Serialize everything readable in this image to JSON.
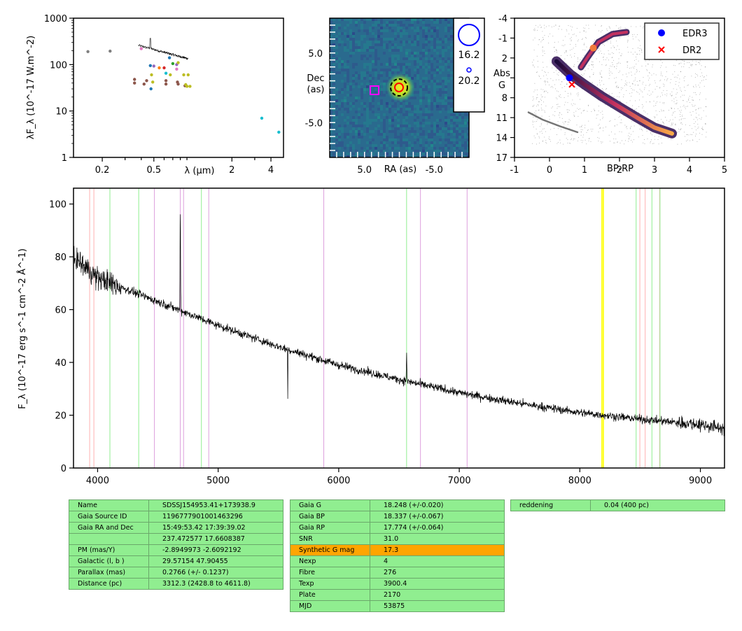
{
  "chart_data": [
    {
      "type": "scatter",
      "xlabel": "λ (μm)",
      "ylabel": "λF_λ (10^-17 W.m^-2)",
      "xscale": "log",
      "yscale": "log",
      "xlim": [
        0.12,
        5
      ],
      "ylim": [
        1,
        1000
      ],
      "xticks": [
        "0.2",
        "0.5",
        "2",
        "4"
      ],
      "yticks": [
        "1",
        "10",
        "100",
        "1000"
      ],
      "points": [
        {
          "x": 0.155,
          "y": 190,
          "color": "#7f7f7f"
        },
        {
          "x": 0.23,
          "y": 195,
          "color": "#7f7f7f"
        },
        {
          "x": 0.355,
          "y": 48,
          "color": "#8c564b"
        },
        {
          "x": 0.355,
          "y": 40,
          "color": "#8c564b"
        },
        {
          "x": 0.4,
          "y": 220,
          "color": "#e377c2"
        },
        {
          "x": 0.42,
          "y": 38,
          "color": "#8c564b"
        },
        {
          "x": 0.44,
          "y": 45,
          "color": "#8c564b"
        },
        {
          "x": 0.47,
          "y": 95,
          "color": "#1f77b4"
        },
        {
          "x": 0.475,
          "y": 30,
          "color": "#1f77b4"
        },
        {
          "x": 0.48,
          "y": 60,
          "color": "#bcbd22"
        },
        {
          "x": 0.49,
          "y": 42,
          "color": "#bcbd22"
        },
        {
          "x": 0.5,
          "y": 93,
          "color": "#9467bd"
        },
        {
          "x": 0.55,
          "y": 85,
          "color": "#ff7f0e"
        },
        {
          "x": 0.6,
          "y": 85,
          "color": "#d62728"
        },
        {
          "x": 0.62,
          "y": 65,
          "color": "#17becf"
        },
        {
          "x": 0.62,
          "y": 45,
          "color": "#8c564b"
        },
        {
          "x": 0.62,
          "y": 38,
          "color": "#8c564b"
        },
        {
          "x": 0.66,
          "y": 140,
          "color": "#1f77b4"
        },
        {
          "x": 0.67,
          "y": 60,
          "color": "#bcbd22"
        },
        {
          "x": 0.7,
          "y": 105,
          "color": "#2ca02c"
        },
        {
          "x": 0.75,
          "y": 100,
          "color": "#9467bd"
        },
        {
          "x": 0.75,
          "y": 80,
          "color": "#e377c2"
        },
        {
          "x": 0.76,
          "y": 42,
          "color": "#8c564b"
        },
        {
          "x": 0.77,
          "y": 38,
          "color": "#8c564b"
        },
        {
          "x": 0.77,
          "y": 110,
          "color": "#bcbd22"
        },
        {
          "x": 0.85,
          "y": 60,
          "color": "#bcbd22"
        },
        {
          "x": 0.87,
          "y": 35,
          "color": "#8c564b"
        },
        {
          "x": 0.88,
          "y": 37,
          "color": "#bcbd22"
        },
        {
          "x": 0.9,
          "y": 34,
          "color": "#bcbd22"
        },
        {
          "x": 0.92,
          "y": 60,
          "color": "#bcbd22"
        },
        {
          "x": 0.95,
          "y": 34,
          "color": "#bcbd22"
        },
        {
          "x": 3.4,
          "y": 7,
          "color": "#17becf"
        },
        {
          "x": 4.6,
          "y": 3.5,
          "color": "#17becf"
        }
      ]
    },
    {
      "type": "heatmap",
      "xlabel": "RA (as)",
      "ylabel": "Dec (as)",
      "xlim": [
        10,
        -10
      ],
      "ylim": [
        -10,
        10
      ],
      "xticks": [
        "5.0",
        "-5.0"
      ],
      "yticks": [
        "5.0",
        "-5.0"
      ],
      "legend": {
        "items": [
          "16.2",
          "20.2"
        ]
      }
    },
    {
      "type": "scatter",
      "xlabel": "BP-RP",
      "ylabel": "Abs G",
      "xlim": [
        -1,
        5
      ],
      "ylim": [
        17,
        -4
      ],
      "xticks": [
        "-1",
        "0",
        "1",
        "2",
        "3",
        "4",
        "5"
      ],
      "yticks": [
        "-4",
        "-1",
        "2",
        "5",
        "8",
        "11",
        "14",
        "17"
      ],
      "series": [
        {
          "name": "EDR3",
          "x": [
            0.57
          ],
          "y": [
            5.0
          ],
          "color": "#0000ff",
          "marker": "circle"
        },
        {
          "name": "DR2",
          "x": [
            0.64
          ],
          "y": [
            6.0
          ],
          "color": "#ff0000",
          "marker": "x"
        }
      ],
      "legend": "top-right"
    },
    {
      "type": "line",
      "xlabel": "",
      "ylabel": "F_λ (10^-17 erg s^-1 cm^-2 Å^-1)",
      "xlim": [
        3800,
        9200
      ],
      "ylim": [
        0,
        106
      ],
      "xticks": [
        "4000",
        "5000",
        "6000",
        "7000",
        "8000",
        "9000"
      ],
      "yticks": [
        "0",
        "20",
        "40",
        "60",
        "80",
        "100"
      ],
      "continuum": [
        [
          3800,
          80
        ],
        [
          4000,
          72
        ],
        [
          4500,
          63
        ],
        [
          5000,
          54
        ],
        [
          5500,
          46
        ],
        [
          6000,
          39
        ],
        [
          6500,
          33.5
        ],
        [
          7000,
          28.5
        ],
        [
          7500,
          24.5
        ],
        [
          8000,
          21
        ],
        [
          8500,
          18.5
        ],
        [
          9000,
          16.5
        ],
        [
          9200,
          15
        ]
      ],
      "emission_lines": [
        {
          "x": 4686,
          "y": 100
        },
        {
          "x": 4861,
          "y": 57
        },
        {
          "x": 6563,
          "y": 44
        }
      ],
      "absorption_features": [
        {
          "x": 5577,
          "y": 26
        }
      ],
      "reference_lines": [
        {
          "x": 3934,
          "color": "#ffb0b0"
        },
        {
          "x": 3969,
          "color": "#ffb0b0"
        },
        {
          "x": 4102,
          "color": "#90ee90"
        },
        {
          "x": 4341,
          "color": "#90ee90"
        },
        {
          "x": 4471,
          "color": "#dda0dd"
        },
        {
          "x": 4686,
          "color": "#dda0dd"
        },
        {
          "x": 4713,
          "color": "#dda0dd"
        },
        {
          "x": 4861,
          "color": "#90ee90"
        },
        {
          "x": 4922,
          "color": "#dda0dd"
        },
        {
          "x": 5876,
          "color": "#dda0dd"
        },
        {
          "x": 6563,
          "color": "#90ee90"
        },
        {
          "x": 6678,
          "color": "#dda0dd"
        },
        {
          "x": 7065,
          "color": "#dda0dd"
        },
        {
          "x": 8183,
          "color": "#ffff00"
        },
        {
          "x": 8195,
          "color": "#ffff00"
        },
        {
          "x": 8467,
          "color": "#90ee90"
        },
        {
          "x": 8498,
          "color": "#ffb0b0"
        },
        {
          "x": 8542,
          "color": "#ffb0b0"
        },
        {
          "x": 8598,
          "color": "#90ee90"
        },
        {
          "x": 8662,
          "color": "#ffb0b0"
        },
        {
          "x": 8665,
          "color": "#90ee90"
        }
      ]
    }
  ],
  "tables": {
    "left": [
      [
        "Name",
        "SDSSJ154953.41+173938.9"
      ],
      [
        "Gaia Source ID",
        "1196777901001463296"
      ],
      [
        "Gaia RA and Dec",
        "15:49:53.42    17:39:39.02"
      ],
      [
        "",
        "237.472577    17.6608387"
      ],
      [
        "PM (mas/Y)",
        "-2.8949973    -2.6092192"
      ],
      [
        "Galactic (l, b )",
        "29.57154    47.90455"
      ],
      [
        "Parallax (mas)",
        "0.2766 (+/- 0.1237)"
      ],
      [
        "Distance (pc)",
        "3312.3 (2428.8 to 4611.8)"
      ]
    ],
    "middle": [
      [
        "Gaia G",
        "18.248 (+/-0.020)"
      ],
      [
        "Gaia BP",
        "18.337 (+/-0.067)"
      ],
      [
        "Gaia RP",
        "17.774 (+/-0.064)"
      ],
      [
        "SNR",
        "31.0"
      ],
      [
        "Synthetic G mag",
        "17.3"
      ],
      [
        "Nexp",
        "4"
      ],
      [
        "Fibre",
        "276"
      ],
      [
        "Texp",
        "3900.4"
      ],
      [
        "Plate",
        "2170"
      ],
      [
        "MJD",
        "53875"
      ]
    ],
    "right": [
      [
        "reddening",
        "0.04 (400 pc)"
      ]
    ],
    "highlight_color": "#ffa500",
    "cell_color": "#90ee90"
  }
}
